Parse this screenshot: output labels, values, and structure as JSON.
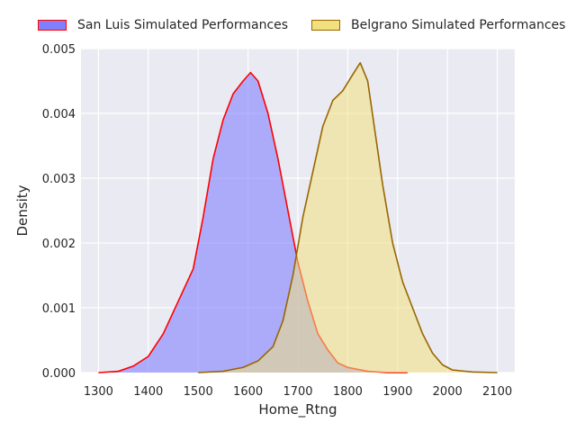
{
  "chart_data": {
    "type": "area",
    "xlabel": "Home_Rtng",
    "ylabel": "Density",
    "xlim": [
      1265,
      2135
    ],
    "ylim": [
      0,
      0.005
    ],
    "x_ticks": [
      "1300",
      "1400",
      "1500",
      "1600",
      "1700",
      "1800",
      "1900",
      "2000",
      "2100"
    ],
    "y_ticks": [
      "0.000",
      "0.001",
      "0.002",
      "0.003",
      "0.004",
      "0.005"
    ],
    "grid": true,
    "legend_position": "top",
    "series": [
      {
        "name": "San Luis Simulated Performances",
        "fill": "#8080ff",
        "line": "#ff0000",
        "points": [
          [
            1300,
            0.0
          ],
          [
            1340,
            2e-05
          ],
          [
            1370,
            0.0001
          ],
          [
            1400,
            0.00025
          ],
          [
            1430,
            0.0006
          ],
          [
            1460,
            0.0011
          ],
          [
            1490,
            0.0016
          ],
          [
            1510,
            0.0024
          ],
          [
            1530,
            0.0033
          ],
          [
            1550,
            0.0039
          ],
          [
            1570,
            0.0043
          ],
          [
            1590,
            0.0045
          ],
          [
            1605,
            0.00463
          ],
          [
            1620,
            0.0045
          ],
          [
            1640,
            0.004
          ],
          [
            1660,
            0.0033
          ],
          [
            1680,
            0.0025
          ],
          [
            1700,
            0.0017
          ],
          [
            1720,
            0.0011
          ],
          [
            1740,
            0.0006
          ],
          [
            1760,
            0.00035
          ],
          [
            1780,
            0.00015
          ],
          [
            1800,
            8e-05
          ],
          [
            1840,
            2e-05
          ],
          [
            1880,
            0.0
          ],
          [
            1920,
            0.0
          ]
        ]
      },
      {
        "name": "Belgrano Simulated Performances",
        "fill": "#f0e080",
        "line": "#996600",
        "points": [
          [
            1500,
            0.0
          ],
          [
            1550,
            2e-05
          ],
          [
            1590,
            8e-05
          ],
          [
            1620,
            0.00018
          ],
          [
            1650,
            0.0004
          ],
          [
            1670,
            0.0008
          ],
          [
            1690,
            0.0015
          ],
          [
            1710,
            0.0024
          ],
          [
            1730,
            0.0031
          ],
          [
            1750,
            0.0038
          ],
          [
            1770,
            0.0042
          ],
          [
            1790,
            0.00435
          ],
          [
            1810,
            0.0046
          ],
          [
            1825,
            0.00478
          ],
          [
            1840,
            0.0045
          ],
          [
            1855,
            0.0037
          ],
          [
            1870,
            0.0029
          ],
          [
            1890,
            0.002
          ],
          [
            1910,
            0.0014
          ],
          [
            1930,
            0.001
          ],
          [
            1950,
            0.0006
          ],
          [
            1970,
            0.0003
          ],
          [
            1990,
            0.00012
          ],
          [
            2010,
            4e-05
          ],
          [
            2050,
            1e-05
          ],
          [
            2100,
            0.0
          ]
        ]
      }
    ]
  }
}
